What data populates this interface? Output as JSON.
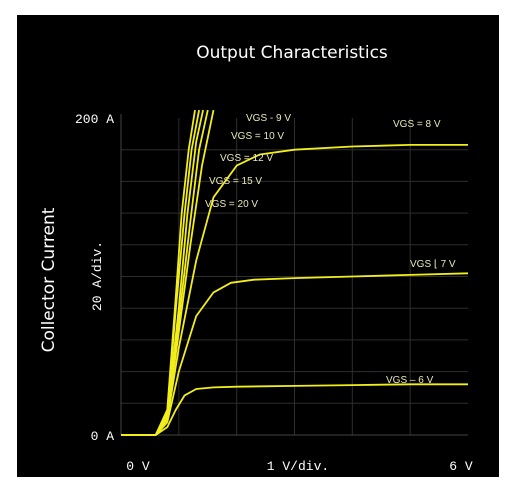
{
  "chart_data": {
    "type": "line",
    "title": "Output Characteristics",
    "ylabel": "Collector Current",
    "xlabel": "",
    "x_unit_label": "1  V/div.",
    "y_unit_label": "20  A/div.",
    "x_tick_labels": [
      "0  V",
      "1  V/div.",
      "6  V"
    ],
    "y_tick_labels": [
      "200  A",
      "0  A"
    ],
    "xlim": [
      0,
      6
    ],
    "ylim": [
      0,
      200
    ],
    "grid": true,
    "series": [
      {
        "name": "VGS = 6 V",
        "label": "VGS – 6 V",
        "x": [
          0,
          0.6,
          0.8,
          0.95,
          1.1,
          1.3,
          1.6,
          2,
          3,
          4,
          5,
          6
        ],
        "y": [
          0,
          0,
          5,
          16,
          25,
          29,
          30,
          30.5,
          31,
          31.5,
          32,
          32
        ]
      },
      {
        "name": "VGS = 7 V",
        "label": "VGS ⌊ 7 V",
        "x": [
          0,
          0.6,
          0.8,
          1.0,
          1.3,
          1.6,
          1.9,
          2.3,
          3,
          4,
          5,
          6
        ],
        "y": [
          0,
          0,
          8,
          40,
          75,
          90,
          96,
          98,
          99,
          100,
          101,
          102
        ]
      },
      {
        "name": "VGS = 8 V",
        "label": "VGS = 8 V",
        "x": [
          0,
          0.6,
          0.8,
          1.0,
          1.3,
          1.6,
          2.0,
          2.4,
          3,
          4,
          5,
          6
        ],
        "y": [
          0,
          0,
          10,
          55,
          110,
          150,
          170,
          177,
          180,
          182,
          183,
          183
        ]
      },
      {
        "name": "VGS = 9 V",
        "label": "VGS - 9 V",
        "x": [
          0,
          0.6,
          0.8,
          1.0,
          1.2,
          1.4,
          1.6
        ],
        "y": [
          0,
          0,
          12,
          65,
          120,
          170,
          205
        ]
      },
      {
        "name": "VGS = 10 V",
        "label": "VGS = 10 V",
        "x": [
          0,
          0.6,
          0.8,
          1.0,
          1.2,
          1.35,
          1.5
        ],
        "y": [
          0,
          0,
          13,
          72,
          135,
          180,
          205
        ]
      },
      {
        "name": "VGS = 12 V",
        "label": "VGS = 12 V",
        "x": [
          0,
          0.6,
          0.8,
          1.0,
          1.15,
          1.3,
          1.42
        ],
        "y": [
          0,
          0,
          14,
          80,
          140,
          185,
          205
        ]
      },
      {
        "name": "VGS = 15 V",
        "label": "VGS = 15 V",
        "x": [
          0,
          0.6,
          0.8,
          0.95,
          1.1,
          1.22,
          1.35
        ],
        "y": [
          0,
          0,
          15,
          80,
          140,
          180,
          205
        ]
      },
      {
        "name": "VGS = 20 V",
        "label": "VGS = 20 V",
        "x": [
          0,
          0.6,
          0.8,
          0.95,
          1.05,
          1.17,
          1.28
        ],
        "y": [
          0,
          0,
          16,
          88,
          140,
          180,
          205
        ]
      }
    ],
    "colors": {
      "background": "#000000",
      "curve": "#f2ee1c",
      "grid": "#2e2e2e",
      "text": "#ffffff"
    }
  }
}
